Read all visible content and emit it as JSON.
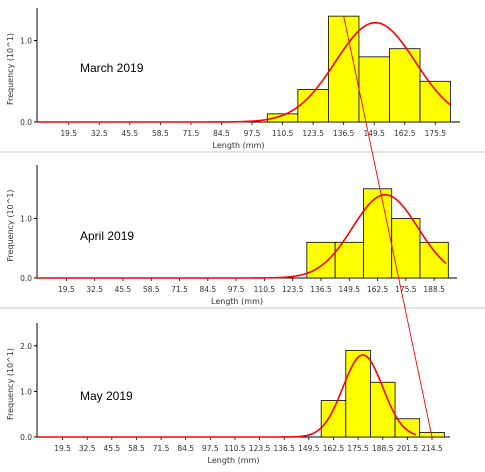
{
  "colors": {
    "bar_fill": "#ffff00",
    "bar_stroke": "#000000",
    "curve": "#ff0000",
    "axis": "#000000",
    "separator": "#c8c8c8"
  },
  "chart_data": [
    {
      "type": "bar",
      "panel_label": "March 2019",
      "xlabel": "Length (mm)",
      "ylabel": "Frequency (10^1)",
      "bin_width": 13,
      "x_tick_labels": [
        "19.5",
        "32.5",
        "45.5",
        "58.5",
        "71.5",
        "84.5",
        "97.5",
        "110.5",
        "123.5",
        "136.5",
        "149.5",
        "162.5",
        "175.5"
      ],
      "x_tick_values": [
        19.5,
        32.5,
        45.5,
        58.5,
        71.5,
        84.5,
        97.5,
        110.5,
        123.5,
        136.5,
        149.5,
        162.5,
        175.5
      ],
      "xlim": [
        6,
        186
      ],
      "ylim": [
        0,
        1.4
      ],
      "y_tick_values": [
        0,
        1
      ],
      "y_tick_labels": [
        "0.0",
        "1.0"
      ],
      "bins": [
        {
          "center": 110.5,
          "value": 0.1
        },
        {
          "center": 123.5,
          "value": 0.4
        },
        {
          "center": 136.5,
          "value": 1.3
        },
        {
          "center": 149.5,
          "value": 0.8
        },
        {
          "center": 162.5,
          "value": 0.9
        },
        {
          "center": 175.5,
          "value": 0.5
        }
      ],
      "fit_curve": {
        "type": "normal",
        "mean": 150,
        "sd": 17,
        "peak": 1.22,
        "x_from": 6,
        "x_to": 182
      }
    },
    {
      "type": "bar",
      "panel_label": "April 2019",
      "xlabel": "Length (mm)",
      "ylabel": "Frequency (10^1)",
      "bin_width": 13,
      "x_tick_labels": [
        "19.5",
        "32.5",
        "45.5",
        "58.5",
        "71.5",
        "84.5",
        "97.5",
        "110.5",
        "123.5",
        "136.5",
        "149.5",
        "162.5",
        "175.5",
        "188.5"
      ],
      "x_tick_values": [
        19.5,
        32.5,
        45.5,
        58.5,
        71.5,
        84.5,
        97.5,
        110.5,
        123.5,
        136.5,
        149.5,
        162.5,
        175.5,
        188.5
      ],
      "xlim": [
        6,
        199
      ],
      "ylim": [
        0,
        1.9
      ],
      "y_tick_values": [
        0,
        1
      ],
      "y_tick_labels": [
        "0.0",
        "1.0"
      ],
      "bins": [
        {
          "center": 136.5,
          "value": 0.6
        },
        {
          "center": 149.5,
          "value": 0.6
        },
        {
          "center": 162.5,
          "value": 1.5
        },
        {
          "center": 175.5,
          "value": 1.0
        },
        {
          "center": 188.5,
          "value": 0.6
        }
      ],
      "fit_curve": {
        "type": "normal",
        "mean": 166,
        "sd": 15,
        "peak": 1.4,
        "x_from": 6,
        "x_to": 194
      }
    },
    {
      "type": "bar",
      "panel_label": "May 2019",
      "xlabel": "Length (mm)",
      "ylabel": "Frequency (10^1)",
      "bin_width": 13,
      "x_tick_labels": [
        "19.5",
        "32.5",
        "45.5",
        "58.5",
        "71.5",
        "84.5",
        "97.5",
        "110.5",
        "123.5",
        "136.5",
        "149.5",
        "162.5",
        "175.5",
        "188.5",
        "201.5",
        "214.5"
      ],
      "x_tick_values": [
        19.5,
        32.5,
        45.5,
        58.5,
        71.5,
        84.5,
        97.5,
        110.5,
        123.5,
        136.5,
        149.5,
        162.5,
        175.5,
        188.5,
        201.5,
        214.5
      ],
      "xlim": [
        6,
        224
      ],
      "ylim": [
        0,
        2.5
      ],
      "y_tick_values": [
        0,
        1,
        2
      ],
      "y_tick_labels": [
        "0.0",
        "1.0",
        "2.0"
      ],
      "bins": [
        {
          "center": 162.5,
          "value": 0.8
        },
        {
          "center": 175.5,
          "value": 1.9
        },
        {
          "center": 188.5,
          "value": 1.2
        },
        {
          "center": 201.5,
          "value": 0.4
        },
        {
          "center": 214.5,
          "value": 0.1
        }
      ],
      "fit_curve": {
        "type": "normal",
        "mean": 178,
        "sd": 10.5,
        "peak": 1.8,
        "x_from": 6,
        "x_to": 206
      }
    }
  ],
  "cohort_trend_line": {
    "description_free": true,
    "points": [
      {
        "panel": 0,
        "x": 136.5,
        "y": 1.3
      },
      {
        "panel": 2,
        "x": 214.5,
        "y": 0.0
      }
    ]
  }
}
